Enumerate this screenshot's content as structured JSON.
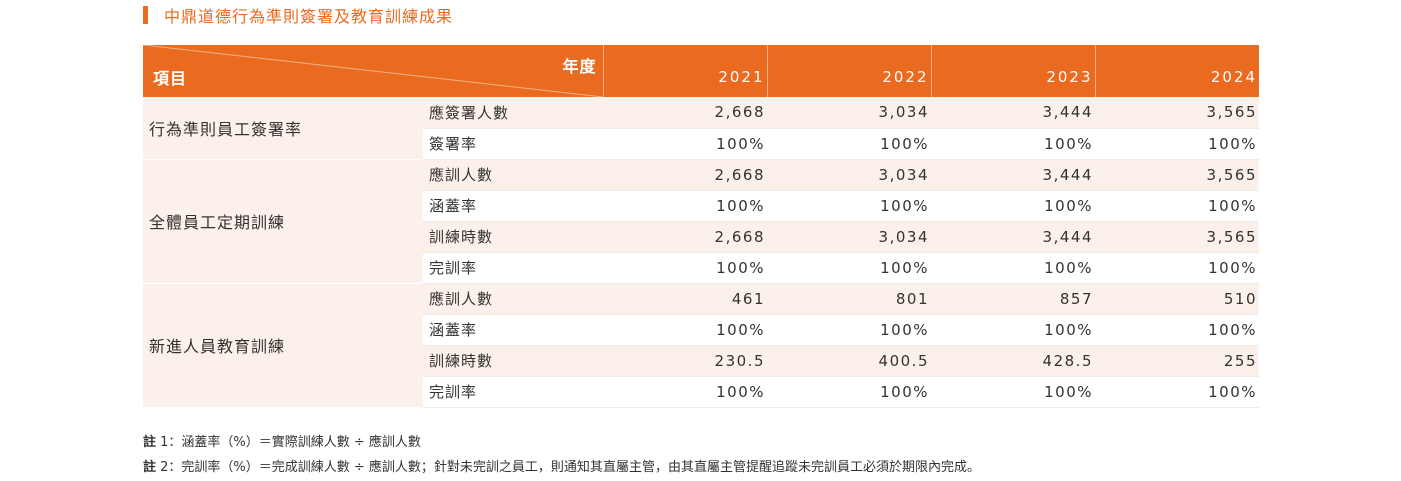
{
  "title": "中鼎道德行為準則簽署及教育訓練成果",
  "colors": {
    "accent": "#ea6a1f",
    "stripe": "#fbf1ea"
  },
  "header": {
    "item_label": "項目",
    "year_label": "年度",
    "years": [
      "2021",
      "2022",
      "2023",
      "2024"
    ]
  },
  "groups": [
    {
      "name": "行為準則員工簽署率",
      "rows": [
        {
          "label": "應簽署人數",
          "values": [
            "2,668",
            "3,034",
            "3,444",
            "3,565"
          ]
        },
        {
          "label": "簽署率",
          "values": [
            "100%",
            "100%",
            "100%",
            "100%"
          ]
        }
      ]
    },
    {
      "name": "全體員工定期訓練",
      "rows": [
        {
          "label": "應訓人數",
          "values": [
            "2,668",
            "3,034",
            "3,444",
            "3,565"
          ]
        },
        {
          "label": "涵蓋率",
          "values": [
            "100%",
            "100%",
            "100%",
            "100%"
          ]
        },
        {
          "label": "訓練時數",
          "values": [
            "2,668",
            "3,034",
            "3,444",
            "3,565"
          ]
        },
        {
          "label": "完訓率",
          "values": [
            "100%",
            "100%",
            "100%",
            "100%"
          ]
        }
      ]
    },
    {
      "name": "新進人員教育訓練",
      "rows": [
        {
          "label": "應訓人數",
          "values": [
            "461",
            "801",
            "857",
            "510"
          ]
        },
        {
          "label": "涵蓋率",
          "values": [
            "100%",
            "100%",
            "100%",
            "100%"
          ]
        },
        {
          "label": "訓練時數",
          "values": [
            "230.5",
            "400.5",
            "428.5",
            "255"
          ]
        },
        {
          "label": "完訓率",
          "values": [
            "100%",
            "100%",
            "100%",
            "100%"
          ]
        }
      ]
    }
  ],
  "notes": [
    {
      "label": "註",
      "text": "1：涵蓋率（%）＝實際訓練人數 ÷ 應訓人數"
    },
    {
      "label": "註",
      "text": "2：完訓率（%）＝完成訓練人數 ÷ 應訓人數；針對未完訓之員工，則通知其直屬主管，由其直屬主管提醒追蹤未完訓員工必須於期限內完成。"
    }
  ]
}
